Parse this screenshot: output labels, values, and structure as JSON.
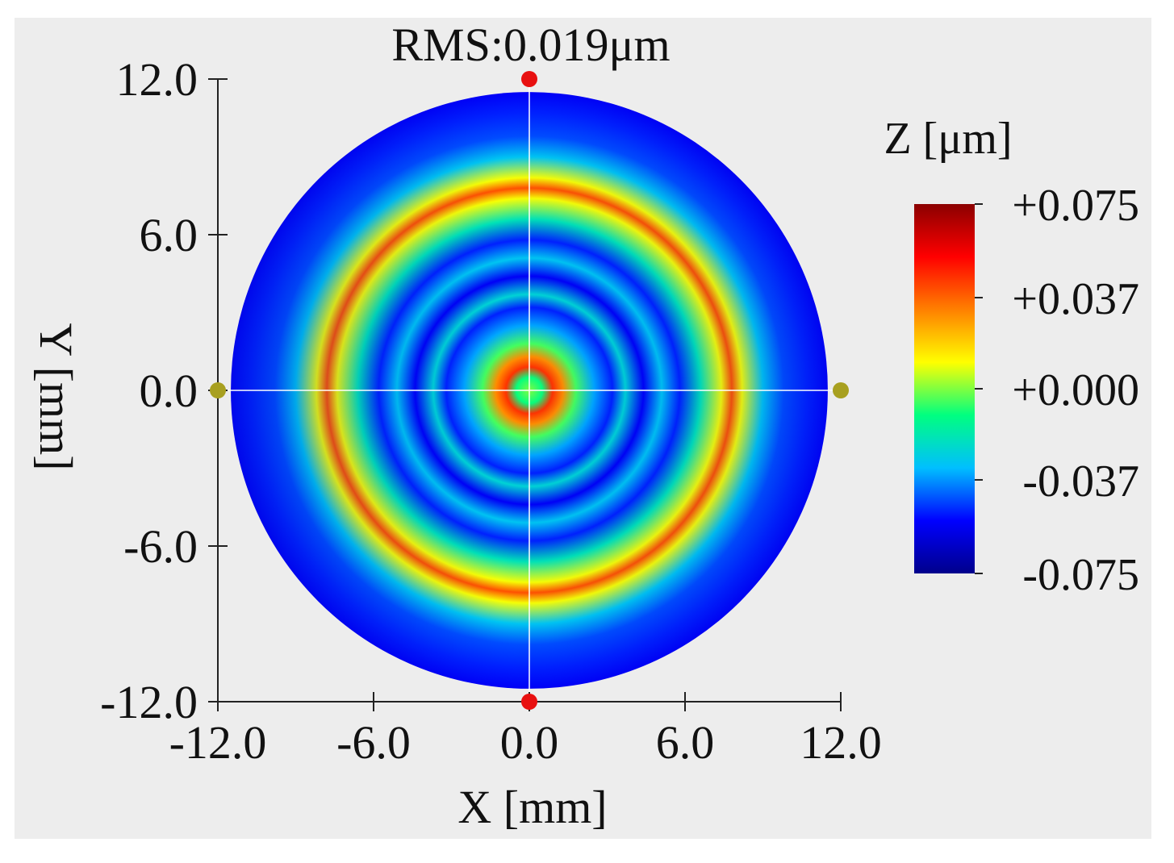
{
  "chart_data": {
    "type": "heatmap",
    "subtype": "surface-error-map",
    "title": "RMS:0.019μm",
    "xlabel": "X [mm]",
    "ylabel": "Y [mm]",
    "xlim": [
      -12.0,
      12.0
    ],
    "ylim": [
      -12.0,
      12.0
    ],
    "x_ticks": [
      "-12.0",
      "-6.0",
      "0.0",
      "6.0",
      "12.0"
    ],
    "y_ticks": [
      "12.0",
      "6.0",
      "0.0",
      "-6.0",
      "-12.0"
    ],
    "x_tick_values": [
      -12,
      -6,
      0,
      6,
      12
    ],
    "y_tick_values": [
      12,
      6,
      0,
      -6,
      -12
    ],
    "aperture_radius_mm": 11.5,
    "colorbar": {
      "label": "Z [μm]",
      "range": [
        -0.075,
        0.075
      ],
      "ticks": [
        "+0.075",
        "+0.037",
        "+0.000",
        "-0.037",
        "-0.075"
      ],
      "tick_values": [
        0.075,
        0.037,
        0.0,
        -0.037,
        -0.075
      ],
      "colormap": [
        "#00008b",
        "#0000ff",
        "#00bfff",
        "#00ff80",
        "#ffff00",
        "#ff8000",
        "#ff0000",
        "#8b0000"
      ]
    },
    "rings": [
      {
        "radius_mm": 0.0,
        "z": 0.0
      },
      {
        "radius_mm": 0.5,
        "z": -0.01
      },
      {
        "radius_mm": 0.9,
        "z": 0.045
      },
      {
        "radius_mm": 1.3,
        "z": 0.03
      },
      {
        "radius_mm": 1.8,
        "z": -0.005
      },
      {
        "radius_mm": 2.5,
        "z": -0.035
      },
      {
        "radius_mm": 3.2,
        "z": -0.05
      },
      {
        "radius_mm": 3.7,
        "z": -0.025
      },
      {
        "radius_mm": 4.4,
        "z": -0.055
      },
      {
        "radius_mm": 5.1,
        "z": -0.03
      },
      {
        "radius_mm": 5.8,
        "z": -0.05
      },
      {
        "radius_mm": 6.6,
        "z": -0.02
      },
      {
        "radius_mm": 7.4,
        "z": 0.01
      },
      {
        "radius_mm": 7.8,
        "z": 0.04
      },
      {
        "radius_mm": 8.2,
        "z": 0.01
      },
      {
        "radius_mm": 9.0,
        "z": -0.03
      },
      {
        "radius_mm": 9.8,
        "z": -0.045
      },
      {
        "radius_mm": 10.7,
        "z": -0.05
      },
      {
        "radius_mm": 11.5,
        "z": -0.055
      }
    ],
    "markers": [
      {
        "x": 0,
        "y": 12,
        "color": "#e81010"
      },
      {
        "x": 0,
        "y": -12,
        "color": "#e81010"
      },
      {
        "x": -12,
        "y": 0,
        "color": "#a8a020"
      },
      {
        "x": 12,
        "y": 0,
        "color": "#a8a020"
      }
    ]
  }
}
